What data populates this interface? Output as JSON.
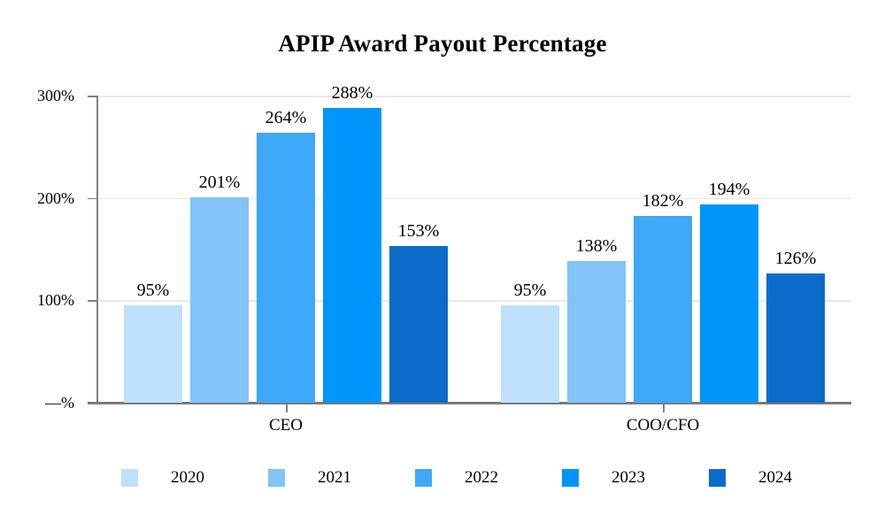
{
  "title": "APIP Award Payout Percentage",
  "chart_data": {
    "type": "bar",
    "title": "APIP Award Payout Percentage",
    "categories": [
      "CEO",
      "COO/CFO"
    ],
    "series": [
      {
        "name": "2020",
        "color": "#bee0fa",
        "values": [
          95,
          95
        ]
      },
      {
        "name": "2021",
        "color": "#82c3f8",
        "values": [
          201,
          138
        ]
      },
      {
        "name": "2022",
        "color": "#3fa8f7",
        "values": [
          264,
          182
        ]
      },
      {
        "name": "2023",
        "color": "#0095fb",
        "values": [
          288,
          194
        ]
      },
      {
        "name": "2024",
        "color": "#0a6bcb",
        "values": [
          153,
          126
        ]
      }
    ],
    "data_label_suffix": "%",
    "y_ticks": [
      {
        "value": 300,
        "label": "300%"
      },
      {
        "value": 200,
        "label": "200%"
      },
      {
        "value": 100,
        "label": "100%"
      },
      {
        "value": 0,
        "label": "—%"
      }
    ],
    "ylim": [
      0,
      300
    ],
    "grid": true,
    "legend_position": "bottom",
    "axis_color": "#808080",
    "gridline_color": "#e8e8e8",
    "text_color": "#000000",
    "background_color": "#ffffff"
  }
}
